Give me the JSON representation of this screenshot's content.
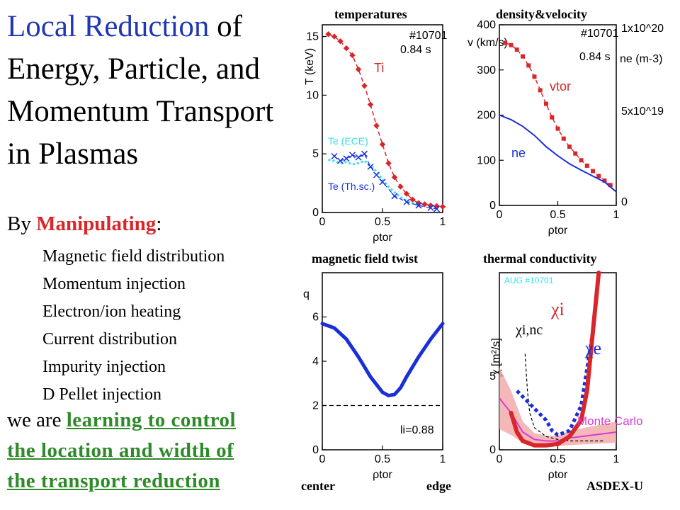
{
  "title": {
    "highlight": "Local Reduction",
    "rest_line1": " of",
    "line2": "Energy, Particle, and",
    "line3": "Momentum Transport",
    "line4": "in Plasmas"
  },
  "by": {
    "prefix": "By ",
    "highlight": "Manipulating",
    "suffix": ":"
  },
  "items": [
    "Magnetic field distribution",
    "Momentum injection",
    "Electron/ion heating",
    "Current distribution",
    "Impurity injection",
    "D Pellet injection"
  ],
  "conclusion": {
    "prefix": "we are ",
    "line1": "learning to control",
    "line2": "the location and width of",
    "line3": "the transport reduction"
  },
  "panel_labels": {
    "temperatures": "temperatures",
    "density": "density&velocity",
    "magnetic": "magnetic field twist",
    "thermal": "thermal conductivity",
    "center": "center",
    "edge": "edge",
    "asdex": "ASDEX-U"
  },
  "colors": {
    "title_blue": "#1f37b4",
    "red": "#d9262a",
    "green": "#2f8a2a",
    "blue": "#1b2fd6",
    "cyan": "#33e0f0",
    "magenta": "#d73ad7",
    "pink": "#f2a6a6"
  },
  "chart_data": [
    {
      "type": "line",
      "name": "temperatures",
      "shot": "#10701",
      "time": "0.84 s",
      "ylabel": "T (keV)",
      "xlabel": "ρtor",
      "xlim": [
        0,
        1
      ],
      "ylim": [
        0,
        16
      ],
      "yticks": [
        "0",
        "5",
        "10",
        "15"
      ],
      "xticks": [
        "0",
        "0.5",
        "1"
      ],
      "series": [
        {
          "name": "Ti",
          "x": [
            0.05,
            0.1,
            0.15,
            0.2,
            0.25,
            0.3,
            0.35,
            0.4,
            0.45,
            0.5,
            0.55,
            0.6,
            0.65,
            0.7,
            0.75,
            0.8,
            0.85,
            0.9,
            0.95,
            1.0
          ],
          "y": [
            15.2,
            15.0,
            14.6,
            14.0,
            13.4,
            12.2,
            10.8,
            9.2,
            7.4,
            5.8,
            4.2,
            3.0,
            2.2,
            1.6,
            1.1,
            0.8,
            0.7,
            0.6,
            0.55,
            0.5
          ]
        },
        {
          "name": "Te (ECE)",
          "x": [
            0.05,
            0.1,
            0.15,
            0.2,
            0.25,
            0.3,
            0.35,
            0.4,
            0.45,
            0.5,
            0.55,
            0.6,
            0.65,
            0.7,
            0.75,
            0.8
          ],
          "y": [
            4.5,
            4.4,
            4.2,
            4.3,
            4.1,
            4.2,
            4.4,
            4.0,
            3.5,
            2.8,
            2.2,
            1.7,
            1.3,
            1.0,
            0.8,
            0.6
          ]
        },
        {
          "name": "Te (Th.sc.)",
          "x": [
            0.1,
            0.15,
            0.2,
            0.25,
            0.3,
            0.35,
            0.4,
            0.45,
            0.5,
            0.6,
            0.7,
            0.8,
            0.9,
            0.95
          ],
          "y": [
            4.8,
            4.4,
            4.6,
            4.9,
            4.7,
            5.0,
            3.9,
            3.2,
            2.6,
            1.4,
            0.9,
            0.6,
            0.4,
            0.3
          ]
        }
      ],
      "labels": [
        "Ti",
        "Te (ECE)",
        "Te (Th.sc.)"
      ]
    },
    {
      "type": "line",
      "name": "density&velocity",
      "shot": "#10701",
      "time": "0.84 s",
      "ylabel": "v (km/s)",
      "y2label": "ne (m-3)",
      "xlabel": "ρtor",
      "xlim": [
        0,
        1
      ],
      "ylim": [
        0,
        400
      ],
      "yticks": [
        "0",
        "100",
        "200",
        "300",
        "400"
      ],
      "y2ticks": [
        "0",
        "5x10^19",
        "1x10^20"
      ],
      "xticks": [
        "0",
        "0.5",
        "1"
      ],
      "series": [
        {
          "name": "vtor",
          "x": [
            0.05,
            0.1,
            0.15,
            0.2,
            0.25,
            0.3,
            0.35,
            0.4,
            0.45,
            0.5,
            0.55,
            0.6,
            0.65,
            0.7,
            0.75,
            0.8,
            0.85,
            0.9,
            0.95
          ],
          "y": [
            360,
            355,
            345,
            330,
            310,
            285,
            255,
            225,
            195,
            170,
            148,
            130,
            115,
            100,
            88,
            76,
            65,
            55,
            45
          ]
        },
        {
          "name": "ne",
          "x": [
            0.0,
            0.1,
            0.2,
            0.3,
            0.4,
            0.5,
            0.6,
            0.7,
            0.8,
            0.9,
            1.0
          ],
          "y": [
            200,
            190,
            175,
            155,
            130,
            110,
            92,
            78,
            65,
            52,
            30
          ]
        }
      ],
      "labels": [
        "vtor",
        "ne"
      ]
    },
    {
      "type": "line",
      "name": "magnetic field twist",
      "ylabel": "q",
      "xlabel": "ρtor",
      "annotation": "li=0.88",
      "xlim": [
        0,
        1
      ],
      "ylim": [
        0,
        8
      ],
      "yticks": [
        "0",
        "2",
        "4",
        "6"
      ],
      "xticks": [
        "0",
        "0.5",
        "1"
      ],
      "reference_line": 2,
      "series": [
        {
          "name": "q",
          "x": [
            0.0,
            0.1,
            0.2,
            0.3,
            0.4,
            0.5,
            0.55,
            0.6,
            0.65,
            0.7,
            0.8,
            0.9,
            1.0
          ],
          "y": [
            5.7,
            5.5,
            5.0,
            4.2,
            3.3,
            2.6,
            2.45,
            2.5,
            2.8,
            3.3,
            4.2,
            5.0,
            5.7
          ]
        }
      ]
    },
    {
      "type": "line",
      "name": "thermal conductivity",
      "shot": "AUG #10701",
      "ylabel": "χ [m²/s]",
      "xlabel": "ρtor",
      "xlim": [
        0,
        1
      ],
      "yticks": [
        "0",
        "5"
      ],
      "xticks": [
        "0",
        "0.5",
        "1"
      ],
      "series": [
        {
          "name": "χi",
          "x": [
            0.1,
            0.15,
            0.2,
            0.3,
            0.4,
            0.5,
            0.6,
            0.7,
            0.75,
            0.8,
            0.85
          ],
          "y": [
            2.5,
            1.2,
            0.6,
            0.3,
            0.3,
            0.4,
            0.9,
            2.0,
            4.0,
            8.0,
            12.0
          ]
        },
        {
          "name": "χe",
          "x": [
            0.15,
            0.2,
            0.3,
            0.4,
            0.45,
            0.5,
            0.6,
            0.7,
            0.8,
            0.85
          ],
          "y": [
            4.0,
            3.6,
            2.8,
            2.0,
            1.3,
            1.0,
            1.3,
            3.0,
            8.0,
            12.0
          ]
        },
        {
          "name": "χi,nc",
          "x": [
            0.22,
            0.24,
            0.26,
            0.3,
            0.4,
            0.5,
            0.6,
            0.7,
            0.8,
            0.9
          ],
          "y": [
            6.5,
            4.0,
            2.5,
            1.5,
            0.9,
            0.7,
            0.6,
            0.6,
            0.6,
            0.6
          ]
        },
        {
          "name": "Monte Carlo",
          "x": [
            0.0,
            0.1,
            0.2,
            0.3,
            0.4,
            0.5,
            0.6,
            0.7,
            0.8,
            0.9,
            1.0
          ],
          "y": [
            3.5,
            2.5,
            1.2,
            0.7,
            0.6,
            0.6,
            0.8,
            0.9,
            1.0,
            1.1,
            1.2
          ]
        }
      ],
      "labels": [
        "χi",
        "χe",
        "χi,nc",
        "Monte Carlo"
      ]
    }
  ]
}
